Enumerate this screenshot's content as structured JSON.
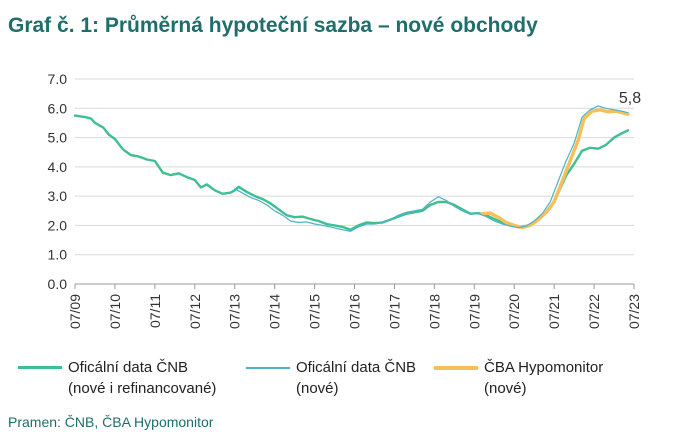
{
  "title": "Graf č. 1: Průměrná hypoteční sazba – nové obchody",
  "source": "Pramen: ČNB, ČBA Hypomonitor",
  "annotation": "5,8",
  "legend": [
    {
      "line1": "Oficální data ČNB",
      "line2": "(nové i refinancované)",
      "color": "#3ec08e"
    },
    {
      "line1": "Oficální data ČNB",
      "line2": "(nové)",
      "color": "#4ab3c9"
    },
    {
      "line1": "ČBA Hypomonitor",
      "line2": "(nové)",
      "color": "#f5c05a"
    }
  ],
  "chart_data": {
    "type": "line",
    "title": "Graf č. 1: Průměrná hypoteční sazba – nové obchody",
    "xlabel": "",
    "ylabel": "",
    "ylim": [
      0,
      7
    ],
    "xlim": [
      2009.5,
      2023.5
    ],
    "y_ticks": [
      "0.0",
      "1.0",
      "2.0",
      "3.0",
      "4.0",
      "5.0",
      "6.0",
      "7.0"
    ],
    "x_ticks": [
      "07/09",
      "07/10",
      "07/11",
      "07/12",
      "07/13",
      "07/14",
      "07/15",
      "07/16",
      "07/17",
      "07/18",
      "07/19",
      "07/20",
      "07/21",
      "07/22",
      "07/23"
    ],
    "grid": true,
    "series": [
      {
        "name": "Oficální data ČNB (nové i refinancované)",
        "color": "#3ec08e",
        "points": [
          [
            2009.5,
            5.75
          ],
          [
            2009.75,
            5.7
          ],
          [
            2009.9,
            5.65
          ],
          [
            2010.0,
            5.5
          ],
          [
            2010.2,
            5.35
          ],
          [
            2010.35,
            5.1
          ],
          [
            2010.5,
            4.95
          ],
          [
            2010.7,
            4.6
          ],
          [
            2010.9,
            4.4
          ],
          [
            2011.1,
            4.35
          ],
          [
            2011.3,
            4.25
          ],
          [
            2011.5,
            4.2
          ],
          [
            2011.7,
            3.8
          ],
          [
            2011.9,
            3.72
          ],
          [
            2012.1,
            3.78
          ],
          [
            2012.3,
            3.65
          ],
          [
            2012.5,
            3.55
          ],
          [
            2012.65,
            3.3
          ],
          [
            2012.8,
            3.4
          ],
          [
            2013.0,
            3.2
          ],
          [
            2013.2,
            3.08
          ],
          [
            2013.4,
            3.12
          ],
          [
            2013.5,
            3.2
          ],
          [
            2013.6,
            3.32
          ],
          [
            2013.8,
            3.15
          ],
          [
            2014.0,
            3.0
          ],
          [
            2014.2,
            2.9
          ],
          [
            2014.4,
            2.75
          ],
          [
            2014.6,
            2.55
          ],
          [
            2014.8,
            2.35
          ],
          [
            2015.0,
            2.28
          ],
          [
            2015.2,
            2.3
          ],
          [
            2015.4,
            2.22
          ],
          [
            2015.6,
            2.15
          ],
          [
            2015.8,
            2.05
          ],
          [
            2016.0,
            2.0
          ],
          [
            2016.2,
            1.95
          ],
          [
            2016.4,
            1.85
          ],
          [
            2016.6,
            2.0
          ],
          [
            2016.8,
            2.1
          ],
          [
            2017.0,
            2.08
          ],
          [
            2017.2,
            2.1
          ],
          [
            2017.4,
            2.2
          ],
          [
            2017.6,
            2.3
          ],
          [
            2017.8,
            2.4
          ],
          [
            2018.0,
            2.45
          ],
          [
            2018.2,
            2.5
          ],
          [
            2018.4,
            2.7
          ],
          [
            2018.6,
            2.8
          ],
          [
            2018.8,
            2.8
          ],
          [
            2019.0,
            2.7
          ],
          [
            2019.2,
            2.55
          ],
          [
            2019.4,
            2.4
          ],
          [
            2019.6,
            2.42
          ],
          [
            2019.8,
            2.35
          ],
          [
            2020.0,
            2.22
          ],
          [
            2020.2,
            2.1
          ],
          [
            2020.4,
            2.0
          ],
          [
            2020.6,
            1.95
          ],
          [
            2020.8,
            1.98
          ],
          [
            2021.0,
            2.08
          ],
          [
            2021.2,
            2.3
          ],
          [
            2021.4,
            2.6
          ],
          [
            2021.6,
            3.1
          ],
          [
            2021.8,
            3.7
          ],
          [
            2022.0,
            4.1
          ],
          [
            2022.2,
            4.55
          ],
          [
            2022.4,
            4.65
          ],
          [
            2022.6,
            4.62
          ],
          [
            2022.8,
            4.75
          ],
          [
            2023.0,
            5.0
          ],
          [
            2023.2,
            5.15
          ],
          [
            2023.35,
            5.25
          ]
        ]
      },
      {
        "name": "Oficální data ČNB (nové)",
        "color": "#4ab3c9",
        "points": [
          [
            2013.5,
            3.25
          ],
          [
            2013.7,
            3.1
          ],
          [
            2013.9,
            2.95
          ],
          [
            2014.1,
            2.85
          ],
          [
            2014.3,
            2.7
          ],
          [
            2014.5,
            2.5
          ],
          [
            2014.7,
            2.35
          ],
          [
            2014.9,
            2.15
          ],
          [
            2015.1,
            2.1
          ],
          [
            2015.3,
            2.12
          ],
          [
            2015.5,
            2.05
          ],
          [
            2015.7,
            2.0
          ],
          [
            2015.9,
            1.95
          ],
          [
            2016.1,
            1.88
          ],
          [
            2016.4,
            1.8
          ],
          [
            2016.6,
            1.95
          ],
          [
            2016.8,
            2.05
          ],
          [
            2017.0,
            2.05
          ],
          [
            2017.2,
            2.1
          ],
          [
            2017.4,
            2.2
          ],
          [
            2017.6,
            2.35
          ],
          [
            2017.8,
            2.45
          ],
          [
            2018.0,
            2.5
          ],
          [
            2018.2,
            2.55
          ],
          [
            2018.4,
            2.8
          ],
          [
            2018.6,
            2.98
          ],
          [
            2018.8,
            2.85
          ],
          [
            2019.0,
            2.65
          ],
          [
            2019.2,
            2.5
          ],
          [
            2019.4,
            2.38
          ],
          [
            2019.6,
            2.4
          ],
          [
            2019.8,
            2.3
          ],
          [
            2020.0,
            2.15
          ],
          [
            2020.2,
            2.05
          ],
          [
            2020.4,
            1.98
          ],
          [
            2020.6,
            1.92
          ],
          [
            2020.8,
            1.98
          ],
          [
            2021.0,
            2.15
          ],
          [
            2021.2,
            2.4
          ],
          [
            2021.4,
            2.8
          ],
          [
            2021.6,
            3.5
          ],
          [
            2021.8,
            4.2
          ],
          [
            2022.0,
            4.8
          ],
          [
            2022.2,
            5.7
          ],
          [
            2022.4,
            5.95
          ],
          [
            2022.6,
            6.08
          ],
          [
            2022.8,
            6.0
          ],
          [
            2023.0,
            5.95
          ],
          [
            2023.2,
            5.9
          ],
          [
            2023.35,
            5.85
          ]
        ]
      },
      {
        "name": "ČBA Hypomonitor (nové)",
        "color": "#f5c05a",
        "points": [
          [
            2019.7,
            2.4
          ],
          [
            2019.9,
            2.42
          ],
          [
            2020.1,
            2.28
          ],
          [
            2020.3,
            2.1
          ],
          [
            2020.5,
            2.0
          ],
          [
            2020.7,
            1.93
          ],
          [
            2020.9,
            2.0
          ],
          [
            2021.1,
            2.2
          ],
          [
            2021.3,
            2.45
          ],
          [
            2021.5,
            2.8
          ],
          [
            2021.7,
            3.5
          ],
          [
            2021.9,
            4.2
          ],
          [
            2022.1,
            4.9
          ],
          [
            2022.25,
            5.65
          ],
          [
            2022.45,
            5.9
          ],
          [
            2022.65,
            5.95
          ],
          [
            2022.85,
            5.88
          ],
          [
            2023.05,
            5.9
          ],
          [
            2023.2,
            5.85
          ],
          [
            2023.35,
            5.8
          ]
        ]
      }
    ]
  }
}
